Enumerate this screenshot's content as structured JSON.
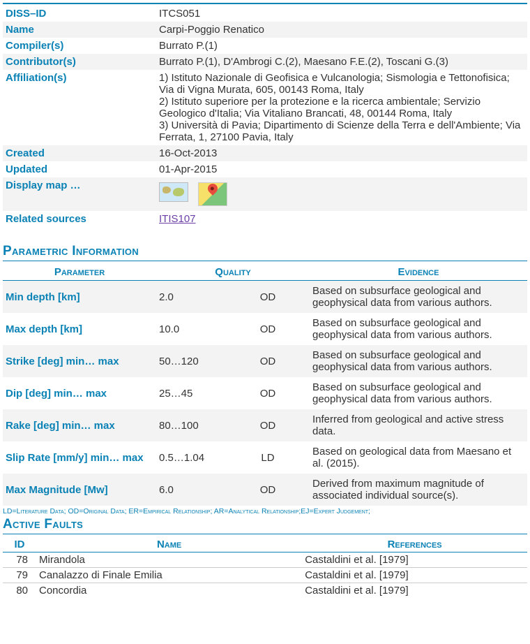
{
  "colors": {
    "accent": "#0a82b5",
    "link": "#6b3fa5",
    "row_alt": "#f3f3f3",
    "text": "#333333"
  },
  "info_rows": [
    {
      "label": "DISS–ID",
      "value": "ITCS051"
    },
    {
      "label": "Name",
      "value": "Carpi-Poggio Renatico"
    },
    {
      "label": "Compiler(s)",
      "value": "Burrato P.(1)"
    },
    {
      "label": "Contributor(s)",
      "value": "Burrato P.(1), D'Ambrogi C.(2), Maesano F.E.(2), Toscani G.(3)"
    },
    {
      "label": "Affiliation(s)",
      "value": "1) Istituto Nazionale di Geofisica e Vulcanologia; Sismologia e Tettonofisica; Via di Vigna Murata, 605, 00143 Roma, Italy\n2) Istituto superiore per la protezione e la ricerca ambientale; Servizio Geologico d'Italia; Via Vitaliano Brancati, 48, 00144 Roma, Italy\n3) Università di Pavia; Dipartimento di Scienze della Terra e dell'Ambiente; Via Ferrata, 1, 27100 Pavia, Italy"
    },
    {
      "label": "Created",
      "value": "16-Oct-2013"
    },
    {
      "label": "Updated",
      "value": "01-Apr-2015"
    }
  ],
  "display_map_label": "Display map …",
  "related_sources_label": "Related sources",
  "related_sources_value": "ITIS107",
  "parametric_title": "Parametric Information",
  "param_headers": {
    "parameter": "Parameter",
    "quality": "Quality",
    "evidence": "Evidence"
  },
  "param_rows": [
    {
      "label": "Min depth [km]",
      "value": "2.0",
      "quality": "OD",
      "evidence": "Based on subsurface geological and geophysical data from various authors."
    },
    {
      "label": "Max depth [km]",
      "value": "10.0",
      "quality": "OD",
      "evidence": "Based on subsurface geological and geophysical data from various authors."
    },
    {
      "label": "Strike [deg] min… max",
      "value": "50…120",
      "quality": "OD",
      "evidence": "Based on subsurface geological and geophysical data from various authors."
    },
    {
      "label": "Dip [deg] min… max",
      "value": "25…45",
      "quality": "OD",
      "evidence": "Based on subsurface geological and geophysical data from various authors."
    },
    {
      "label": "Rake [deg] min… max",
      "value": "80…100",
      "quality": "OD",
      "evidence": "Inferred from geological and active stress data."
    },
    {
      "label": "Slip Rate [mm/y] min… max",
      "value": "0.5…1.04",
      "quality": "LD",
      "evidence": "Based on geological data from Maesano et al. (2015)."
    },
    {
      "label": "Max Magnitude [Mw]",
      "value": "6.0",
      "quality": "OD",
      "evidence": "Derived from maximum magnitude of associated individual source(s)."
    }
  ],
  "legend": "LD=Literature Data; OD=Original Data; ER=Empirical Relationship; AR=Analytical Relationship;EJ=Expert Judgement;",
  "active_faults_title": "Active Faults",
  "af_headers": {
    "id": "ID",
    "name": "Name",
    "references": "References"
  },
  "af_rows": [
    {
      "id": "78",
      "name": "Mirandola",
      "references": "Castaldini et al. [1979]"
    },
    {
      "id": "79",
      "name": "Canalazzo di Finale Emilia",
      "references": "Castaldini et al. [1979]"
    },
    {
      "id": "80",
      "name": "Concordia",
      "references": "Castaldini et al. [1979]"
    }
  ]
}
